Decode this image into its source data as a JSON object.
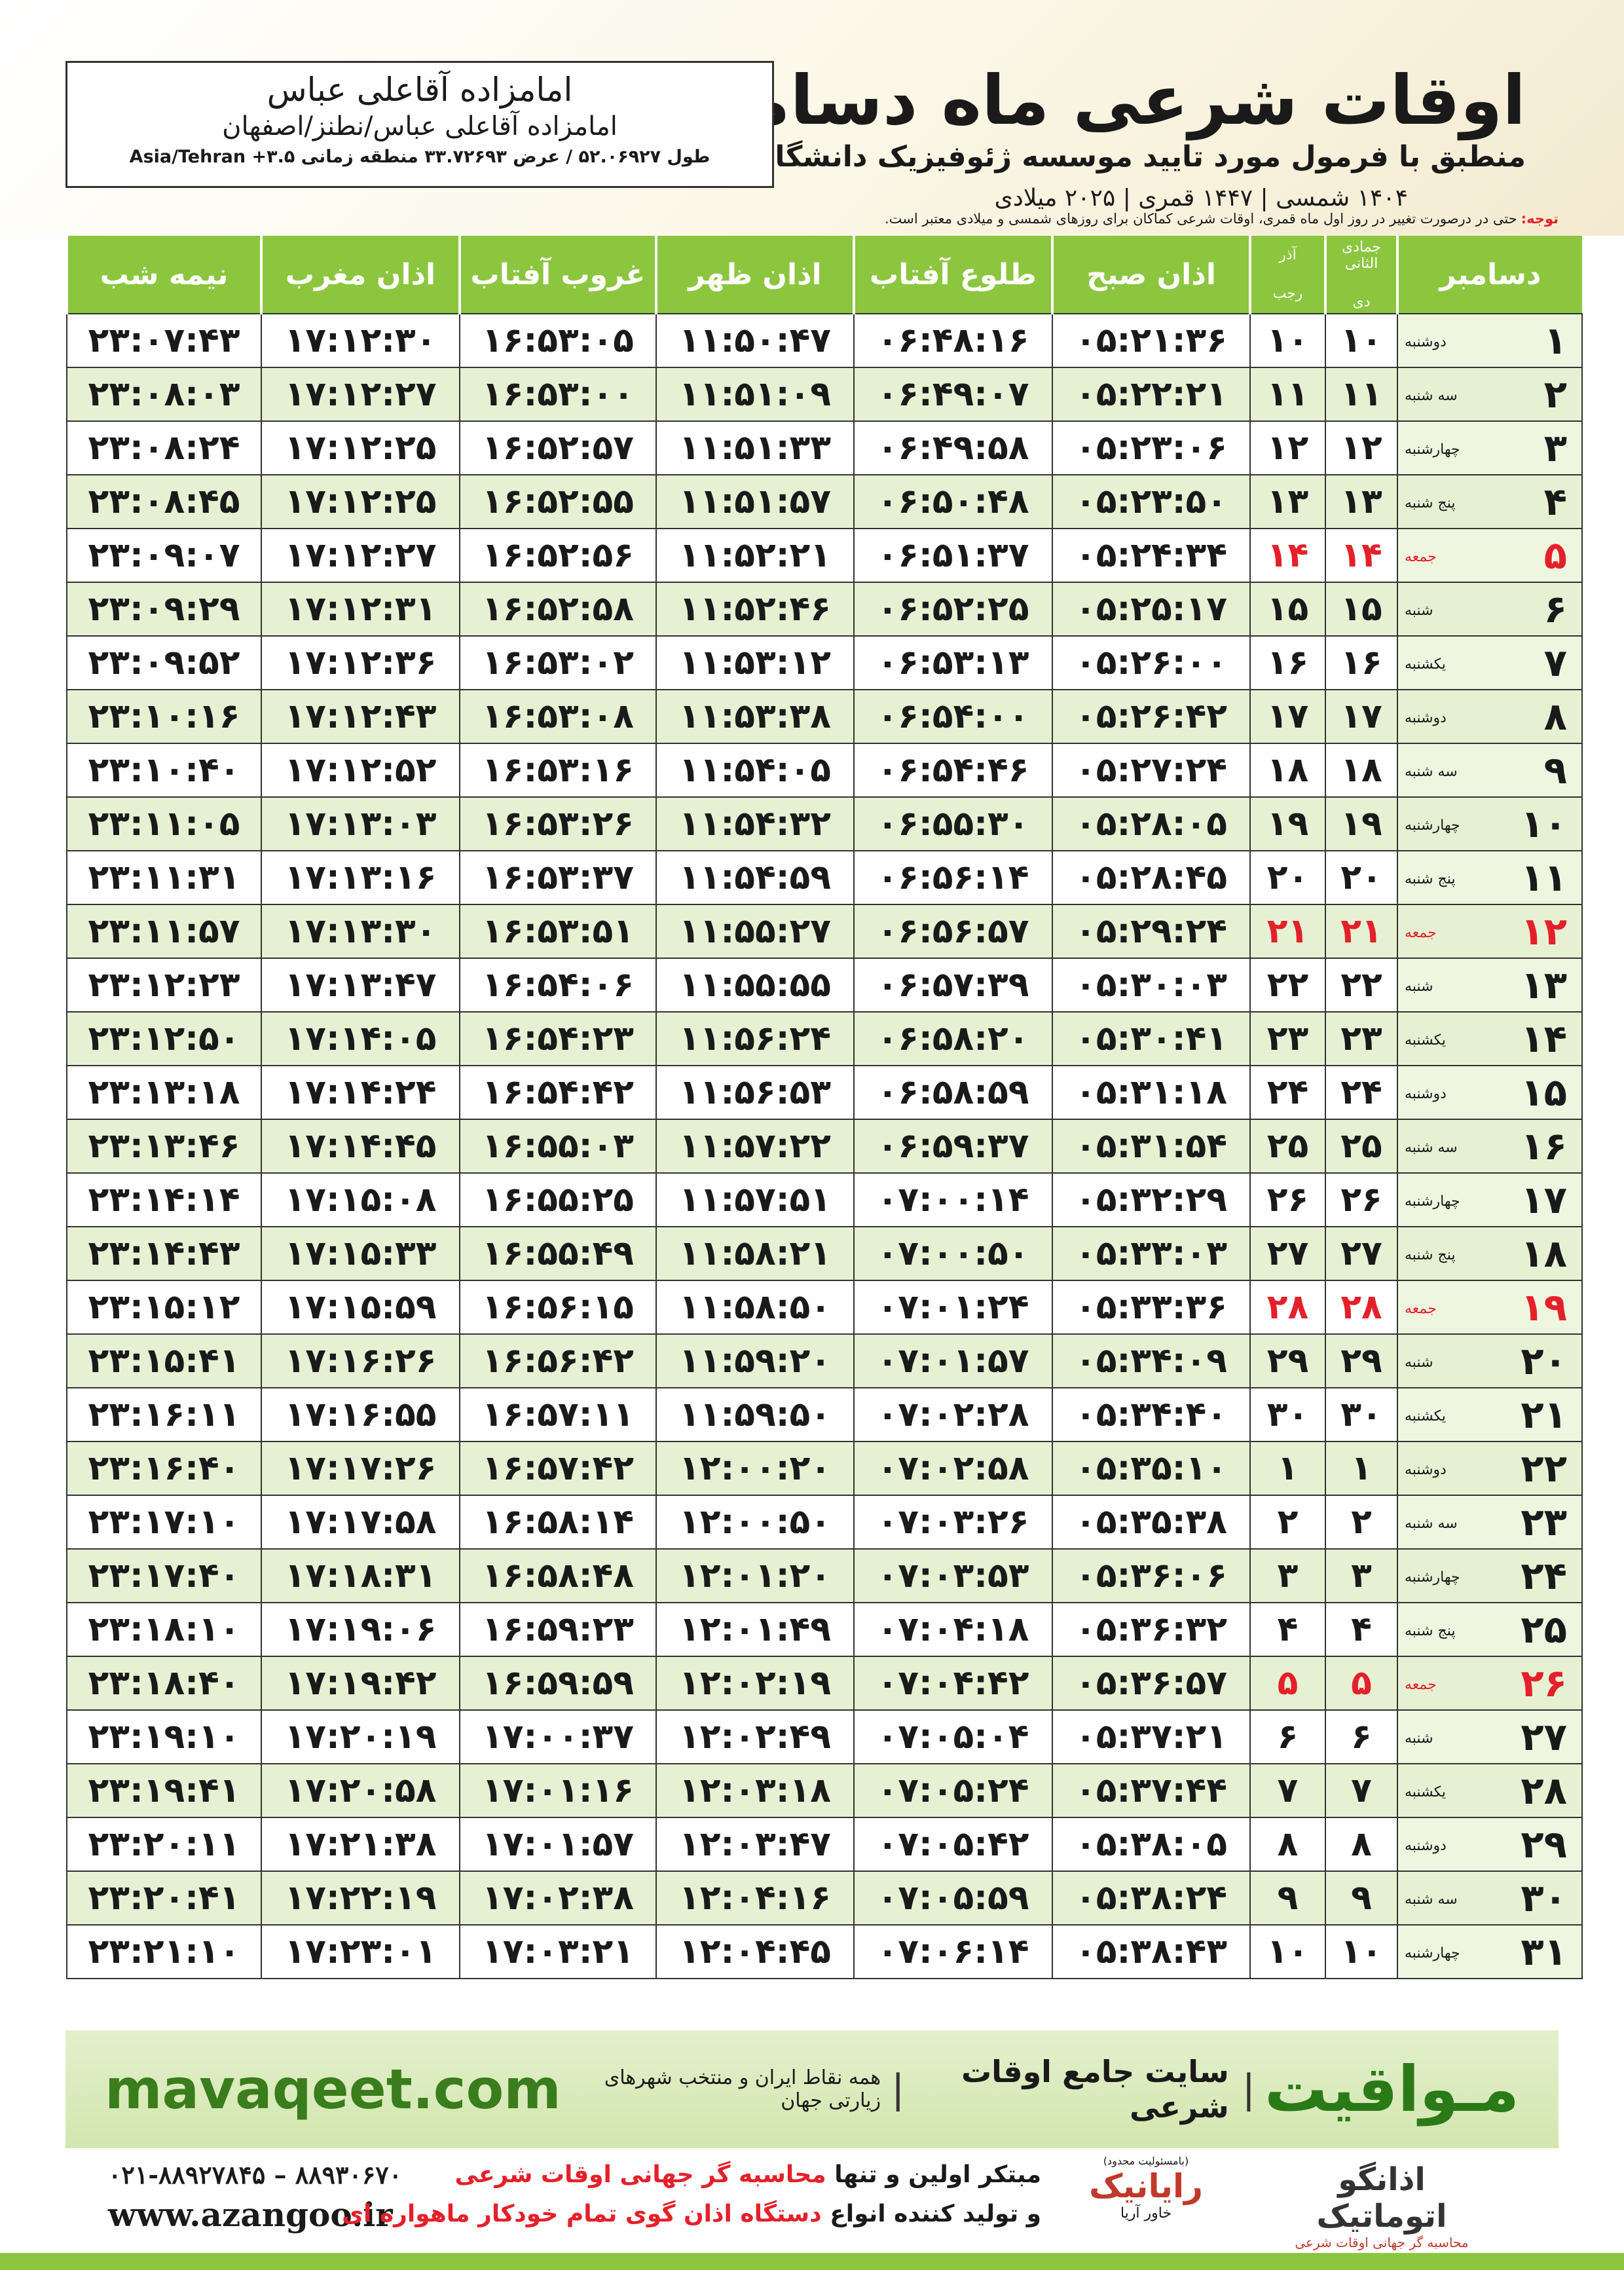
{
  "header": {
    "title": "اوقات شرعی ماه دسامبر",
    "subtitle": "منطبق با فرمول مورد تایید موسسه ژئوفیزیک دانشگاه تهران",
    "dates": "۱۴۰۴ شمسی | ۱۴۴۷ قمری | ۲۰۲۵ میلادی"
  },
  "location": {
    "name": "امامزاده آقاعلی عباس",
    "address": "امامزاده آقاعلی عباس/نطنز/اصفهان",
    "coordinates": "طول ۵۲.۰۶۹۲۷ / عرض ۳۳.۷۲۶۹۳ منطقه زمانی ۳.۵+ Asia/Tehran"
  },
  "note": {
    "label": "توجه:",
    "text": "حتی در درصورت تغییر در روز اول ماه قمری، اوقات شرعی کماکان برای روزهای شمسی و میلادی معتبر است."
  },
  "table": {
    "columns": [
      "دسامبر",
      {
        "top": "جمادی الثانی",
        "bottom": "دی"
      },
      {
        "top": "آذر",
        "bottom": "رجب"
      },
      "اذان صبح",
      "طلوع آفتاب",
      "اذان ظهر",
      "غروب آفتاب",
      "اذان مغرب",
      "نیمه شب"
    ],
    "rows": [
      {
        "cells": [
          "۱",
          "دوشنبه",
          "۱۰",
          "۱۰",
          "۰۵:۲۱:۳۶",
          "۰۶:۴۸:۱۶",
          "۱۱:۵۰:۴۷",
          "۱۶:۵۳:۰۵",
          "۱۷:۱۲:۳۰",
          "۲۳:۰۷:۴۳"
        ]
      },
      {
        "cells": [
          "۲",
          "سه شنبه",
          "۱۱",
          "۱۱",
          "۰۵:۲۲:۲۱",
          "۰۶:۴۹:۰۷",
          "۱۱:۵۱:۰۹",
          "۱۶:۵۳:۰۰",
          "۱۷:۱۲:۲۷",
          "۲۳:۰۸:۰۳"
        ]
      },
      {
        "cells": [
          "۳",
          "چهارشنبه",
          "۱۲",
          "۱۲",
          "۰۵:۲۳:۰۶",
          "۰۶:۴۹:۵۸",
          "۱۱:۵۱:۳۳",
          "۱۶:۵۲:۵۷",
          "۱۷:۱۲:۲۵",
          "۲۳:۰۸:۲۴"
        ]
      },
      {
        "cells": [
          "۴",
          "پنج شنبه",
          "۱۳",
          "۱۳",
          "۰۵:۲۳:۵۰",
          "۰۶:۵۰:۴۸",
          "۱۱:۵۱:۵۷",
          "۱۶:۵۲:۵۵",
          "۱۷:۱۲:۲۵",
          "۲۳:۰۸:۴۵"
        ]
      },
      {
        "cells": [
          "۵",
          "جمعه",
          "۱۴",
          "۱۴",
          "۰۵:۲۴:۳۴",
          "۰۶:۵۱:۳۷",
          "۱۱:۵۲:۲۱",
          "۱۶:۵۲:۵۶",
          "۱۷:۱۲:۲۷",
          "۲۳:۰۹:۰۷"
        ],
        "color": "#e4202a"
      },
      {
        "cells": [
          "۶",
          "شنبه",
          "۱۵",
          "۱۵",
          "۰۵:۲۵:۱۷",
          "۰۶:۵۲:۲۵",
          "۱۱:۵۲:۴۶",
          "۱۶:۵۲:۵۸",
          "۱۷:۱۲:۳۱",
          "۲۳:۰۹:۲۹"
        ]
      },
      {
        "cells": [
          "۷",
          "یکشنبه",
          "۱۶",
          "۱۶",
          "۰۵:۲۶:۰۰",
          "۰۶:۵۳:۱۳",
          "۱۱:۵۳:۱۲",
          "۱۶:۵۳:۰۲",
          "۱۷:۱۲:۳۶",
          "۲۳:۰۹:۵۲"
        ]
      },
      {
        "cells": [
          "۸",
          "دوشنبه",
          "۱۷",
          "۱۷",
          "۰۵:۲۶:۴۲",
          "۰۶:۵۴:۰۰",
          "۱۱:۵۳:۳۸",
          "۱۶:۵۳:۰۸",
          "۱۷:۱۲:۴۳",
          "۲۳:۱۰:۱۶"
        ]
      },
      {
        "cells": [
          "۹",
          "سه شنبه",
          "۱۸",
          "۱۸",
          "۰۵:۲۷:۲۴",
          "۰۶:۵۴:۴۶",
          "۱۱:۵۴:۰۵",
          "۱۶:۵۳:۱۶",
          "۱۷:۱۲:۵۲",
          "۲۳:۱۰:۴۰"
        ]
      },
      {
        "cells": [
          "۱۰",
          "چهارشنبه",
          "۱۹",
          "۱۹",
          "۰۵:۲۸:۰۵",
          "۰۶:۵۵:۳۰",
          "۱۱:۵۴:۳۲",
          "۱۶:۵۳:۲۶",
          "۱۷:۱۳:۰۳",
          "۲۳:۱۱:۰۵"
        ]
      },
      {
        "cells": [
          "۱۱",
          "پنج شنبه",
          "۲۰",
          "۲۰",
          "۰۵:۲۸:۴۵",
          "۰۶:۵۶:۱۴",
          "۱۱:۵۴:۵۹",
          "۱۶:۵۳:۳۷",
          "۱۷:۱۳:۱۶",
          "۲۳:۱۱:۳۱"
        ]
      },
      {
        "cells": [
          "۱۲",
          "جمعه",
          "۲۱",
          "۲۱",
          "۰۵:۲۹:۲۴",
          "۰۶:۵۶:۵۷",
          "۱۱:۵۵:۲۷",
          "۱۶:۵۳:۵۱",
          "۱۷:۱۳:۳۰",
          "۲۳:۱۱:۵۷"
        ],
        "color": "#e4202a"
      },
      {
        "cells": [
          "۱۳",
          "شنبه",
          "۲۲",
          "۲۲",
          "۰۵:۳۰:۰۳",
          "۰۶:۵۷:۳۹",
          "۱۱:۵۵:۵۵",
          "۱۶:۵۴:۰۶",
          "۱۷:۱۳:۴۷",
          "۲۳:۱۲:۲۳"
        ]
      },
      {
        "cells": [
          "۱۴",
          "یکشنبه",
          "۲۳",
          "۲۳",
          "۰۵:۳۰:۴۱",
          "۰۶:۵۸:۲۰",
          "۱۱:۵۶:۲۴",
          "۱۶:۵۴:۲۳",
          "۱۷:۱۴:۰۵",
          "۲۳:۱۲:۵۰"
        ]
      },
      {
        "cells": [
          "۱۵",
          "دوشنبه",
          "۲۴",
          "۲۴",
          "۰۵:۳۱:۱۸",
          "۰۶:۵۸:۵۹",
          "۱۱:۵۶:۵۳",
          "۱۶:۵۴:۴۲",
          "۱۷:۱۴:۲۴",
          "۲۳:۱۳:۱۸"
        ]
      },
      {
        "cells": [
          "۱۶",
          "سه شنبه",
          "۲۵",
          "۲۵",
          "۰۵:۳۱:۵۴",
          "۰۶:۵۹:۳۷",
          "۱۱:۵۷:۲۲",
          "۱۶:۵۵:۰۳",
          "۱۷:۱۴:۴۵",
          "۲۳:۱۳:۴۶"
        ]
      },
      {
        "cells": [
          "۱۷",
          "چهارشنبه",
          "۲۶",
          "۲۶",
          "۰۵:۳۲:۲۹",
          "۰۷:۰۰:۱۴",
          "۱۱:۵۷:۵۱",
          "۱۶:۵۵:۲۵",
          "۱۷:۱۵:۰۸",
          "۲۳:۱۴:۱۴"
        ]
      },
      {
        "cells": [
          "۱۸",
          "پنج شنبه",
          "۲۷",
          "۲۷",
          "۰۵:۳۳:۰۳",
          "۰۷:۰۰:۵۰",
          "۱۱:۵۸:۲۱",
          "۱۶:۵۵:۴۹",
          "۱۷:۱۵:۳۳",
          "۲۳:۱۴:۴۳"
        ]
      },
      {
        "cells": [
          "۱۹",
          "جمعه",
          "۲۸",
          "۲۸",
          "۰۵:۳۳:۳۶",
          "۰۷:۰۱:۲۴",
          "۱۱:۵۸:۵۰",
          "۱۶:۵۶:۱۵",
          "۱۷:۱۵:۵۹",
          "۲۳:۱۵:۱۲"
        ],
        "color": "#e4202a"
      },
      {
        "cells": [
          "۲۰",
          "شنبه",
          "۲۹",
          "۲۹",
          "۰۵:۳۴:۰۹",
          "۰۷:۰۱:۵۷",
          "۱۱:۵۹:۲۰",
          "۱۶:۵۶:۴۲",
          "۱۷:۱۶:۲۶",
          "۲۳:۱۵:۴۱"
        ]
      },
      {
        "cells": [
          "۲۱",
          "یکشنبه",
          "۳۰",
          "۳۰",
          "۰۵:۳۴:۴۰",
          "۰۷:۰۲:۲۸",
          "۱۱:۵۹:۵۰",
          "۱۶:۵۷:۱۱",
          "۱۷:۱۶:۵۵",
          "۲۳:۱۶:۱۱"
        ]
      },
      {
        "cells": [
          "۲۲",
          "دوشنبه",
          "۱",
          "۱",
          "۰۵:۳۵:۱۰",
          "۰۷:۰۲:۵۸",
          "۱۲:۰۰:۲۰",
          "۱۶:۵۷:۴۲",
          "۱۷:۱۷:۲۶",
          "۲۳:۱۶:۴۰"
        ]
      },
      {
        "cells": [
          "۲۳",
          "سه شنبه",
          "۲",
          "۲",
          "۰۵:۳۵:۳۸",
          "۰۷:۰۳:۲۶",
          "۱۲:۰۰:۵۰",
          "۱۶:۵۸:۱۴",
          "۱۷:۱۷:۵۸",
          "۲۳:۱۷:۱۰"
        ]
      },
      {
        "cells": [
          "۲۴",
          "چهارشنبه",
          "۳",
          "۳",
          "۰۵:۳۶:۰۶",
          "۰۷:۰۳:۵۳",
          "۱۲:۰۱:۲۰",
          "۱۶:۵۸:۴۸",
          "۱۷:۱۸:۳۱",
          "۲۳:۱۷:۴۰"
        ]
      },
      {
        "cells": [
          "۲۵",
          "پنج شنبه",
          "۴",
          "۴",
          "۰۵:۳۶:۳۲",
          "۰۷:۰۴:۱۸",
          "۱۲:۰۱:۴۹",
          "۱۶:۵۹:۲۳",
          "۱۷:۱۹:۰۶",
          "۲۳:۱۸:۱۰"
        ]
      },
      {
        "cells": [
          "۲۶",
          "جمعه",
          "۵",
          "۵",
          "۰۵:۳۶:۵۷",
          "۰۷:۰۴:۴۲",
          "۱۲:۰۲:۱۹",
          "۱۶:۵۹:۵۹",
          "۱۷:۱۹:۴۲",
          "۲۳:۱۸:۴۰"
        ],
        "color": "#e4202a"
      },
      {
        "cells": [
          "۲۷",
          "شنبه",
          "۶",
          "۶",
          "۰۵:۳۷:۲۱",
          "۰۷:۰۵:۰۴",
          "۱۲:۰۲:۴۹",
          "۱۷:۰۰:۳۷",
          "۱۷:۲۰:۱۹",
          "۲۳:۱۹:۱۰"
        ]
      },
      {
        "cells": [
          "۲۸",
          "یکشنبه",
          "۷",
          "۷",
          "۰۵:۳۷:۴۴",
          "۰۷:۰۵:۲۴",
          "۱۲:۰۳:۱۸",
          "۱۷:۰۱:۱۶",
          "۱۷:۲۰:۵۸",
          "۲۳:۱۹:۴۱"
        ]
      },
      {
        "cells": [
          "۲۹",
          "دوشنبه",
          "۸",
          "۸",
          "۰۵:۳۸:۰۵",
          "۰۷:۰۵:۴۲",
          "۱۲:۰۳:۴۷",
          "۱۷:۰۱:۵۷",
          "۱۷:۲۱:۳۸",
          "۲۳:۲۰:۱۱"
        ]
      },
      {
        "cells": [
          "۳۰",
          "سه شنبه",
          "۹",
          "۹",
          "۰۵:۳۸:۲۴",
          "۰۷:۰۵:۵۹",
          "۱۲:۰۴:۱۶",
          "۱۷:۰۲:۳۸",
          "۱۷:۲۲:۱۹",
          "۲۳:۲۰:۴۱"
        ]
      },
      {
        "cells": [
          "۳۱",
          "چهارشنبه",
          "۱۰",
          "۱۰",
          "۰۵:۳۸:۴۳",
          "۰۷:۰۶:۱۴",
          "۱۲:۰۴:۴۵",
          "۱۷:۰۳:۲۱",
          "۱۷:۲۳:۰۱",
          "۲۳:۲۱:۱۰"
        ]
      }
    ]
  },
  "footer": {
    "brand": "مـواقیت",
    "site_description": "سایت جامع اوقات شرعی",
    "site_subtext": "همه نقاط ایران و منتخب شهرهای زیارتی جهان",
    "url": "mavaqeet.com"
  },
  "contact": {
    "phone": "۰۲۱-۸۸۹۲۷۸۴۵ – ۸۸۹۳۰۶۷۰",
    "website": "www.azangoo.ir",
    "tagline_1": [
      "مبتکر اولین و تنها",
      "محاسبه گر جهانی اوقات شرعی"
    ],
    "tagline_2": [
      "و تولید کننده انواع",
      "دستگاه اذان گوی تمام خودکار ماهواره ای"
    ],
    "logo_azangoo": {
      "name": "اذانگو اتوماتیک",
      "subtitle": "محاسبه گر جهانی اوقات شرعی",
      "latin": "azangoo"
    },
    "logo_rayanik": {
      "note": "(بامسئولیت محدود)",
      "name": "رایانیک",
      "subtitle": "خاور آریا"
    }
  }
}
